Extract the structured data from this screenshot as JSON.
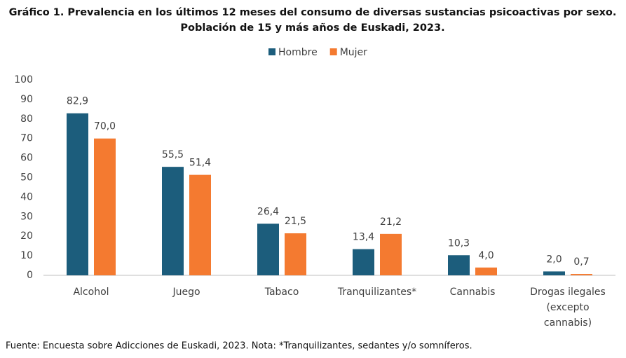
{
  "chart_data": {
    "type": "bar",
    "title": [
      "Gráfico 1. Prevalencia en los últimos 12 meses del consumo de diversas sustancias psicoactivas por sexo.",
      "Población de 15 y más años de Euskadi, 2023."
    ],
    "categories": [
      "Alcohol",
      "Juego",
      "Tabaco",
      "Tranquilizantes*",
      "Cannabis",
      "Drogas ilegales (excepto cannabis)"
    ],
    "series": [
      {
        "name": "Hombre",
        "color": "#1c5d7c",
        "values": [
          82.9,
          55.5,
          26.4,
          13.4,
          10.3,
          2.0
        ],
        "value_labels": [
          "82,9",
          "55,5",
          "26,4",
          "13,4",
          "10,3",
          "2,0"
        ]
      },
      {
        "name": "Mujer",
        "color": "#f47a30",
        "values": [
          70.0,
          51.4,
          21.5,
          21.2,
          4.0,
          0.7
        ],
        "value_labels": [
          "70,0",
          "51,4",
          "21,5",
          "21,2",
          "4,0",
          "0,7"
        ]
      }
    ],
    "ylim": [
      0,
      100
    ],
    "yticks": [
      0,
      10,
      20,
      30,
      40,
      50,
      60,
      70,
      80,
      90,
      100
    ],
    "grid": false,
    "legend": "top",
    "note": "Fuente: Encuesta sobre Adicciones de Euskadi, 2023. Nota: *Tranquilizantes, sedantes y/o somníferos."
  }
}
